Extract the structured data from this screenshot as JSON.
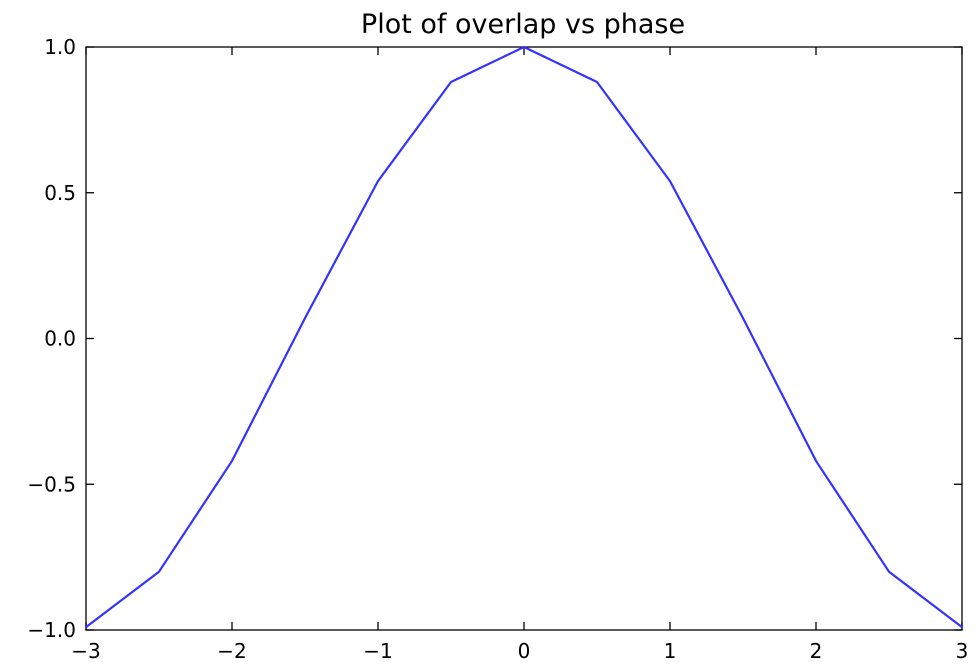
{
  "chart_data": {
    "type": "line",
    "title": "Plot of overlap vs phase",
    "xlabel": "",
    "ylabel": "",
    "xlim": [
      -3,
      3
    ],
    "ylim": [
      -1,
      1
    ],
    "grid": false,
    "xticks": [
      {
        "value": -3,
        "label": "−3"
      },
      {
        "value": -2,
        "label": "−2"
      },
      {
        "value": -1,
        "label": "−1"
      },
      {
        "value": 0,
        "label": "0"
      },
      {
        "value": 1,
        "label": "1"
      },
      {
        "value": 2,
        "label": "2"
      },
      {
        "value": 3,
        "label": "3"
      }
    ],
    "yticks": [
      {
        "value": -1,
        "label": "−1.0"
      },
      {
        "value": -0.5,
        "label": "−0.5"
      },
      {
        "value": 0,
        "label": "0.0"
      },
      {
        "value": 0.5,
        "label": "0.5"
      },
      {
        "value": 1,
        "label": "1.0"
      }
    ],
    "series": [
      {
        "color": "#3333ff",
        "x": [
          -3,
          -2.5,
          -2,
          -1.5,
          -1,
          -0.5,
          0,
          0.5,
          1,
          1.5,
          2,
          2.5,
          3
        ],
        "y": [
          -0.99,
          -0.8,
          -0.42,
          0.07,
          0.54,
          0.88,
          1.0,
          0.88,
          0.54,
          0.07,
          -0.42,
          -0.8,
          -0.99
        ]
      }
    ]
  }
}
